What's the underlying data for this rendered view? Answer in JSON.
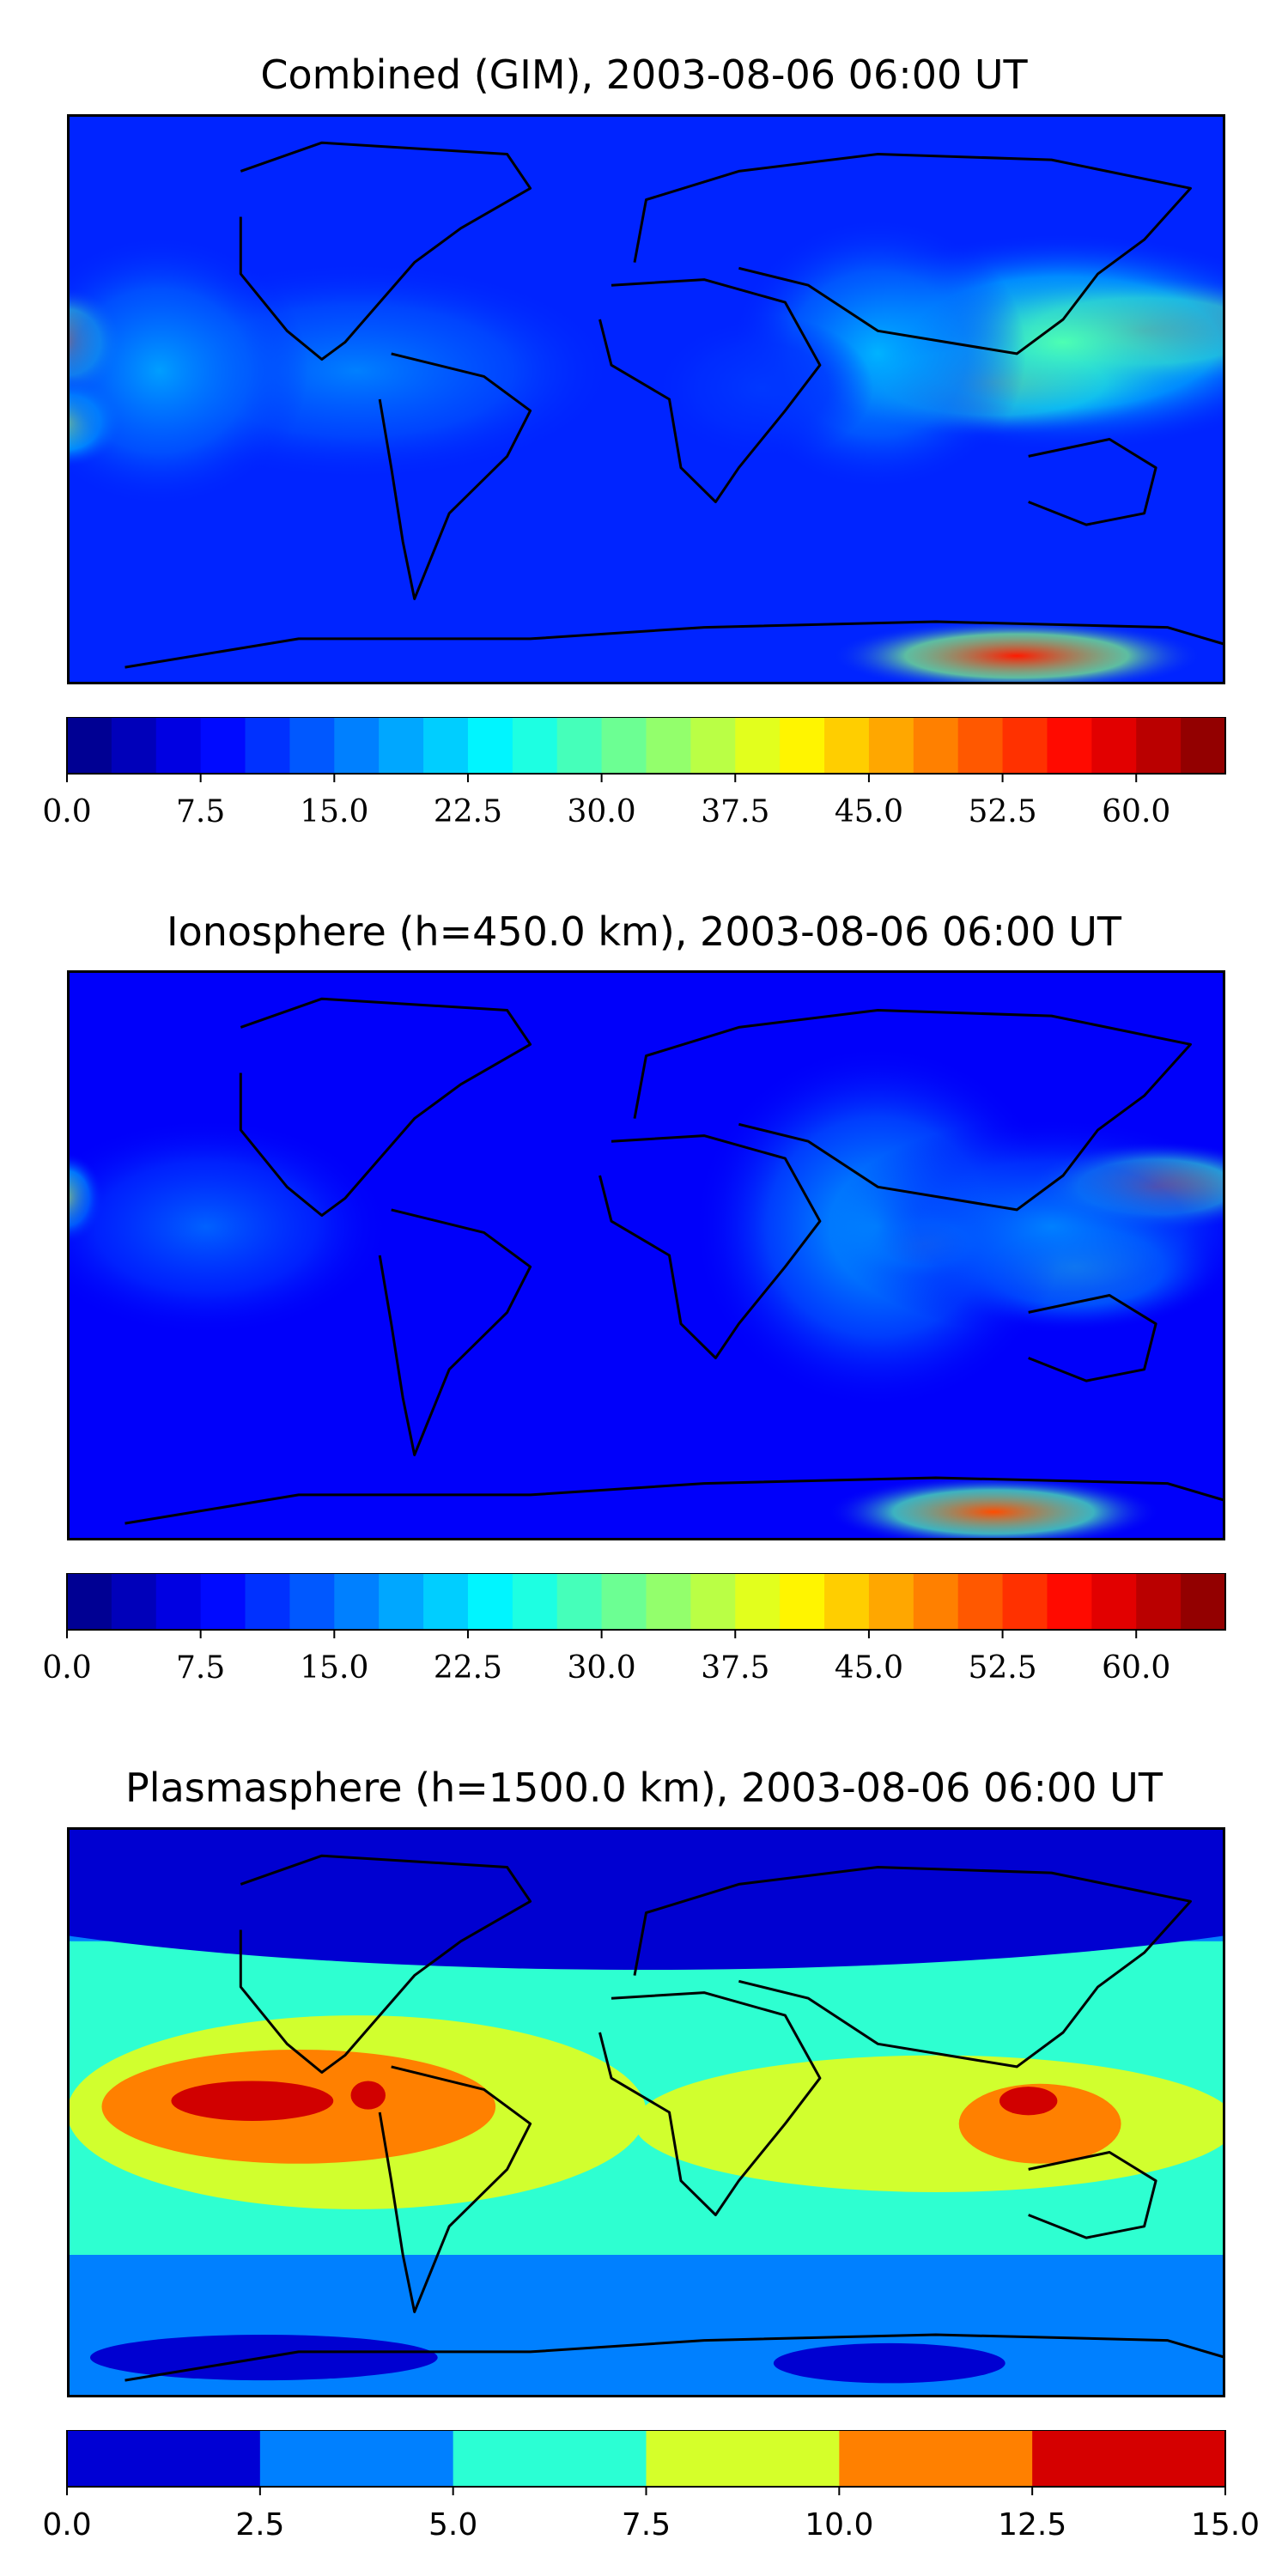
{
  "panels": [
    {
      "title": "Combined (GIM), 2003-08-06 06:00 UT",
      "colorbar": {
        "min": 0,
        "max": 64,
        "step": 2.5,
        "tick_labels": [
          "0.0",
          "7.5",
          "15.0",
          "22.5",
          "30.0",
          "37.5",
          "45.0",
          "52.5",
          "60.0"
        ],
        "tick_values": [
          0,
          7.5,
          15,
          22.5,
          30,
          37.5,
          45,
          52.5,
          60
        ]
      }
    },
    {
      "title": "Ionosphere  (h=450.0 km), 2003-08-06 06:00 UT",
      "colorbar": {
        "min": 0,
        "max": 64,
        "step": 2.5,
        "tick_labels": [
          "0.0",
          "7.5",
          "15.0",
          "22.5",
          "30.0",
          "37.5",
          "45.0",
          "52.5",
          "60.0"
        ],
        "tick_values": [
          0,
          7.5,
          15,
          22.5,
          30,
          37.5,
          45,
          52.5,
          60
        ]
      }
    },
    {
      "title": "Plasmasphere (h=1500.0 km), 2003-08-06 06:00 UT",
      "colorbar": {
        "min": 0,
        "max": 15,
        "step": 2.5,
        "tick_labels": [
          "0.0",
          "2.5",
          "5.0",
          "7.5",
          "10.0",
          "12.5",
          "15.0"
        ],
        "tick_values": [
          0,
          2.5,
          5,
          7.5,
          10,
          12.5,
          15
        ]
      }
    }
  ],
  "colormap": "jet"
}
